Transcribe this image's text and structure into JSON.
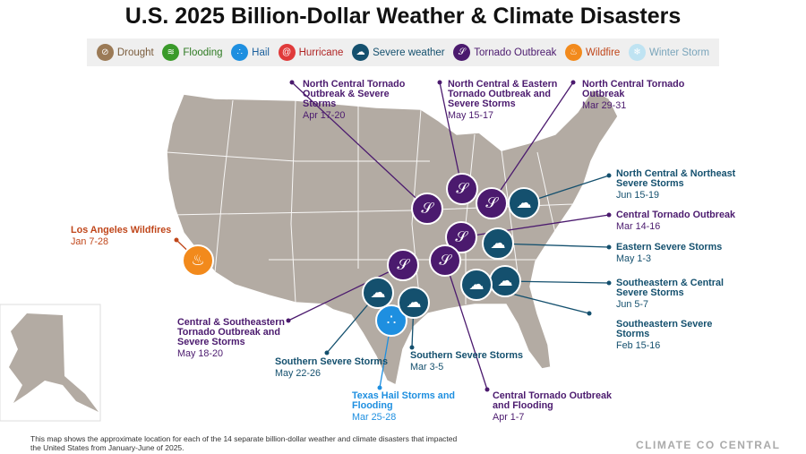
{
  "title": "U.S. 2025 Billion-Dollar Weather & Climate Disasters",
  "legend": [
    {
      "label": "Drought",
      "color": "#9b7a56",
      "text": "#7a5c3c",
      "glyph": "⊘"
    },
    {
      "label": "Flooding",
      "color": "#3a9a2a",
      "text": "#2e7a22",
      "glyph": "≋"
    },
    {
      "label": "Hail",
      "color": "#1e8fe0",
      "text": "#1a5f9c",
      "glyph": "∴"
    },
    {
      "label": "Hurricane",
      "color": "#e03a3a",
      "text": "#b02525",
      "glyph": "@"
    },
    {
      "label": "Severe weather",
      "color": "#14506e",
      "text": "#14506e",
      "glyph": "☁"
    },
    {
      "label": "Tornado Outbreak",
      "color": "#4b1a6e",
      "text": "#4b1a6e",
      "glyph": "𝒮"
    },
    {
      "label": "Wildfire",
      "color": "#f28a1c",
      "text": "#c0461a",
      "glyph": "♨"
    },
    {
      "label": "Winter Storm",
      "color": "#bfe3f2",
      "text": "#7aa5bb",
      "glyph": "❄"
    }
  ],
  "events": [
    {
      "name": "North Central Tornado Outbreak & Severe Storms",
      "date": "Apr 17-20",
      "color": "#4b1a6e"
    },
    {
      "name": "North Central & Eastern Tornado Outbreak and Severe Storms",
      "date": "May 15-17",
      "color": "#4b1a6e"
    },
    {
      "name": "North Central Tornado Outbreak",
      "date": "Mar 29-31",
      "color": "#4b1a6e"
    },
    {
      "name": "North Central & Northeast Severe Storms",
      "date": "Jun 15-19",
      "color": "#14506e"
    },
    {
      "name": "Central Tornado Outbreak",
      "date": "Mar 14-16",
      "color": "#4b1a6e"
    },
    {
      "name": "Eastern Severe Storms",
      "date": "May 1-3",
      "color": "#14506e"
    },
    {
      "name": "Southeastern & Central Severe Storms",
      "date": "Jun 5-7",
      "color": "#14506e"
    },
    {
      "name": "Southeastern Severe Storms",
      "date": "Feb 15-16",
      "color": "#14506e"
    },
    {
      "name": "Central Tornado Outbreak and Flooding",
      "date": "Apr 1-7",
      "color": "#4b1a6e"
    },
    {
      "name": "Texas Hail Storms and Flooding",
      "date": "Mar 25-28",
      "color": "#1e8fe0"
    },
    {
      "name": "Southern Severe Storms",
      "date": "Mar 3-5",
      "color": "#14506e"
    },
    {
      "name": "Southern Severe Storms",
      "date": "May 22-26",
      "color": "#14506e"
    },
    {
      "name": "Central & Southeastern Tornado Outbreak and Severe Storms",
      "date": "May 18-20",
      "color": "#4b1a6e"
    },
    {
      "name": "Los Angeles Wildfires",
      "date": "Jan 7-28",
      "color": "#c0461a"
    }
  ],
  "footnote": "This map shows the approximate location for each of the 14 separate billion-dollar weather and climate disasters that impacted the United States from January-June of 2025.",
  "logo": "CLIMATE CO CENTRAL"
}
